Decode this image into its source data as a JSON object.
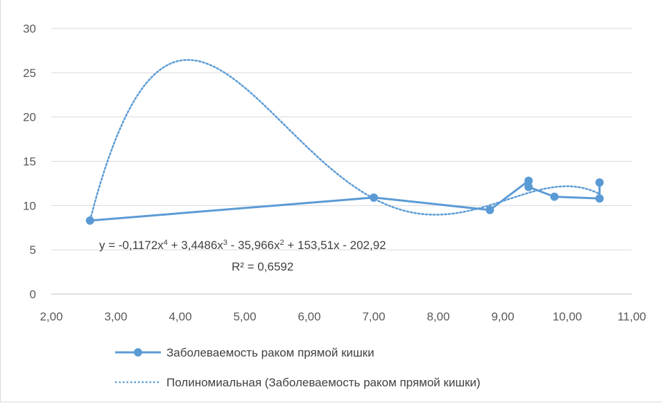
{
  "chart_data": {
    "type": "scatter",
    "xlim": [
      2,
      11
    ],
    "ylim": [
      0,
      30
    ],
    "x_ticks": [
      "2,00",
      "3,00",
      "4,00",
      "5,00",
      "6,00",
      "7,00",
      "8,00",
      "9,00",
      "10,00",
      "11,00"
    ],
    "y_ticks": [
      "0",
      "5",
      "10",
      "15",
      "20",
      "25",
      "30"
    ],
    "grid": "horizontal",
    "legend_position": "bottom",
    "series": [
      {
        "name": "Заболеваемость раком прямой кишки",
        "kind": "line-with-markers",
        "color": "#5b9bd5",
        "points": [
          {
            "x": 2.6,
            "y": 8.3
          },
          {
            "x": 7.0,
            "y": 10.9
          },
          {
            "x": 8.8,
            "y": 9.5
          },
          {
            "x": 9.4,
            "y": 12.8
          },
          {
            "x": 9.4,
            "y": 12.1
          },
          {
            "x": 9.8,
            "y": 11.0
          },
          {
            "x": 10.5,
            "y": 10.8
          },
          {
            "x": 10.5,
            "y": 12.6
          }
        ]
      },
      {
        "name": "Полиномиальная (Заболеваемость раком прямой кишки)",
        "kind": "trendline-dotted",
        "color": "#5b9bd5",
        "coefficients": [
          -202.92,
          153.51,
          -35.966,
          3.4486,
          -0.1172
        ],
        "x_range": [
          2.6,
          10.5
        ]
      }
    ],
    "annotation": {
      "equation_parts": [
        "y = -0,1172x",
        "4",
        " + 3,4486x",
        "3",
        " - 35,966x",
        "2",
        " + 153,51x - 202,92"
      ],
      "r_squared_label": "R² = 0,6592"
    }
  }
}
